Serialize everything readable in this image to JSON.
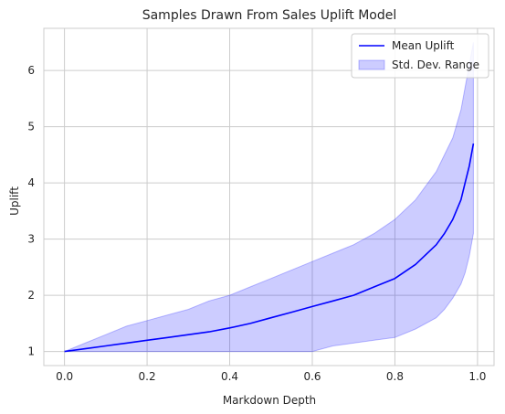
{
  "chart_data": {
    "type": "line",
    "title": "Samples Drawn From Sales Uplift Model",
    "xlabel": "Markdown Depth",
    "ylabel": "Uplift",
    "xlim": [
      -0.05,
      1.04
    ],
    "ylim": [
      0.75,
      6.75
    ],
    "xticks": [
      0.0,
      0.2,
      0.4,
      0.6,
      0.8,
      1.0
    ],
    "xtick_labels": [
      "0.0",
      "0.2",
      "0.4",
      "0.6",
      "0.8",
      "1.0"
    ],
    "yticks": [
      1,
      2,
      3,
      4,
      5,
      6
    ],
    "ytick_labels": [
      "1",
      "2",
      "3",
      "4",
      "5",
      "6"
    ],
    "grid": true,
    "legend_position": "top-right",
    "series": [
      {
        "name": "Mean Uplift",
        "kind": "line",
        "color": "#0000ff",
        "x": [
          0.0,
          0.05,
          0.1,
          0.15,
          0.2,
          0.25,
          0.3,
          0.35,
          0.4,
          0.45,
          0.5,
          0.55,
          0.6,
          0.65,
          0.7,
          0.75,
          0.8,
          0.85,
          0.9,
          0.92,
          0.94,
          0.96,
          0.97,
          0.98,
          0.99
        ],
        "y": [
          1.0,
          1.05,
          1.1,
          1.15,
          1.2,
          1.25,
          1.3,
          1.35,
          1.42,
          1.5,
          1.6,
          1.7,
          1.8,
          1.9,
          2.0,
          2.15,
          2.3,
          2.55,
          2.9,
          3.1,
          3.35,
          3.7,
          4.0,
          4.3,
          4.7
        ]
      },
      {
        "name": "Std. Dev. Range",
        "kind": "band",
        "color": "#0000ff",
        "opacity": 0.2,
        "x": [
          0.0,
          0.05,
          0.1,
          0.15,
          0.2,
          0.25,
          0.3,
          0.35,
          0.4,
          0.45,
          0.5,
          0.55,
          0.6,
          0.65,
          0.7,
          0.75,
          0.8,
          0.85,
          0.9,
          0.92,
          0.94,
          0.96,
          0.97,
          0.98,
          0.99
        ],
        "lower": [
          1.0,
          1.0,
          1.0,
          1.0,
          1.0,
          1.0,
          1.0,
          1.0,
          1.0,
          1.0,
          1.0,
          1.0,
          1.0,
          1.1,
          1.15,
          1.2,
          1.25,
          1.4,
          1.6,
          1.75,
          1.95,
          2.2,
          2.4,
          2.7,
          3.1
        ],
        "upper": [
          1.0,
          1.15,
          1.3,
          1.45,
          1.55,
          1.65,
          1.75,
          1.9,
          2.0,
          2.15,
          2.3,
          2.45,
          2.6,
          2.75,
          2.9,
          3.1,
          3.35,
          3.7,
          4.2,
          4.5,
          4.8,
          5.3,
          5.7,
          6.1,
          6.5
        ]
      }
    ]
  }
}
